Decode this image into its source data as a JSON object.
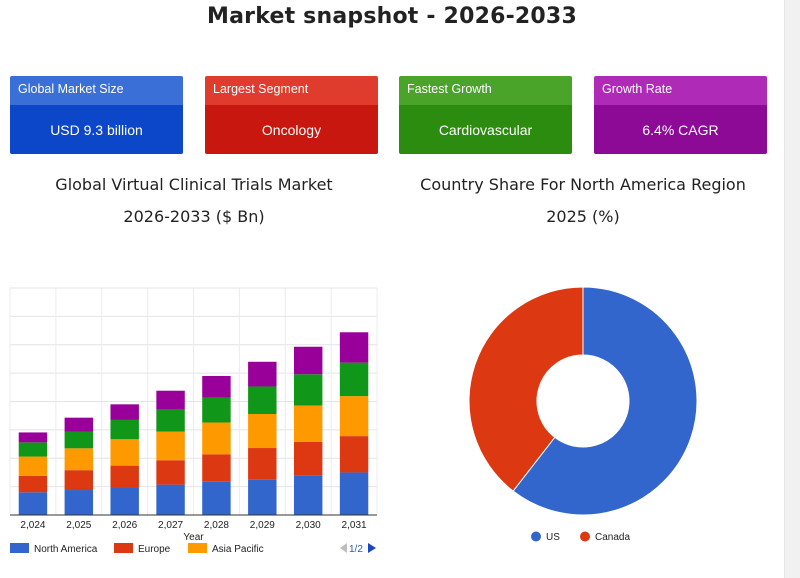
{
  "page": {
    "title": "Market snapshot - 2026-2033"
  },
  "cards": [
    {
      "label": "Global Market Size",
      "value": "USD 9.3 billion",
      "head_color": "#3a6fd8",
      "body_color": "#0d47c9"
    },
    {
      "label": "Largest Segment",
      "value": "Oncology",
      "head_color": "#e03c2e",
      "body_color": "#c8170e"
    },
    {
      "label": "Fastest Growth",
      "value": "Cardiovascular",
      "head_color": "#4ba42a",
      "body_color": "#2c8c10"
    },
    {
      "label": "Growth Rate",
      "value": "6.4% CAGR",
      "head_color": "#b02ab8",
      "body_color": "#8c0a96"
    }
  ],
  "bar_section": {
    "title_line1": "Global Virtual Clinical Trials Market",
    "title_line2": "2026-2033 ($ Bn)"
  },
  "pie_section": {
    "title_line1": "Country Share For North America Region",
    "title_line2": "2025 (%)"
  },
  "chart_data": [
    {
      "type": "bar",
      "stacked": true,
      "categories": [
        "2,024",
        "2,025",
        "2,026",
        "2,027",
        "2,028",
        "2,029",
        "2,030",
        "2,031"
      ],
      "xlabel": "Year",
      "ylabel": "",
      "ylim": [
        0,
        8
      ],
      "grid": true,
      "legend": {
        "position": "bottom",
        "pager": "1/2"
      },
      "series": [
        {
          "name": "North America",
          "color": "#3366cc",
          "values": [
            0.8,
            0.88,
            0.97,
            1.07,
            1.17,
            1.26,
            1.4,
            1.5
          ]
        },
        {
          "name": "Europe",
          "color": "#dc3912",
          "values": [
            0.58,
            0.7,
            0.77,
            0.86,
            0.97,
            1.1,
            1.18,
            1.28
          ]
        },
        {
          "name": "Asia Pacific",
          "color": "#ff9900",
          "values": [
            0.68,
            0.77,
            0.93,
            1.01,
            1.12,
            1.2,
            1.28,
            1.41
          ]
        },
        {
          "name": "",
          "color": "#109618",
          "values": [
            0.5,
            0.58,
            0.68,
            0.77,
            0.87,
            0.97,
            1.1,
            1.18
          ]
        },
        {
          "name": "",
          "color": "#990099",
          "values": [
            0.35,
            0.5,
            0.55,
            0.67,
            0.77,
            0.87,
            0.97,
            1.07
          ]
        }
      ]
    },
    {
      "type": "pie",
      "donut": true,
      "legend": {
        "position": "bottom"
      },
      "slices": [
        {
          "label": "US",
          "value": 60.5,
          "color": "#3366cc"
        },
        {
          "label": "Canada",
          "value": 39.5,
          "color": "#dc3912"
        }
      ]
    }
  ]
}
